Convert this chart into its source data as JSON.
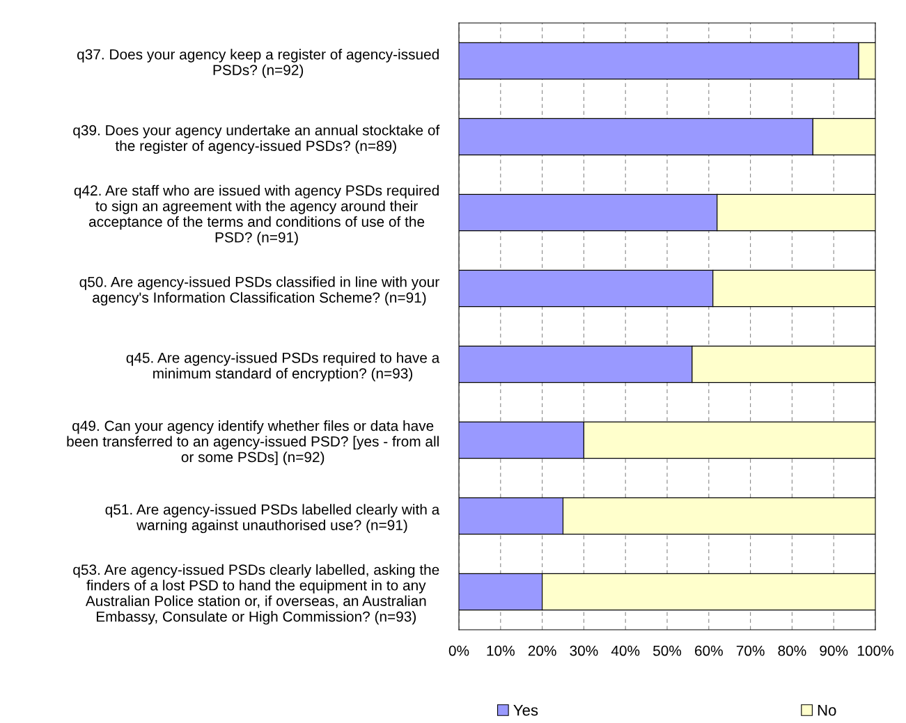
{
  "chart_data": {
    "type": "bar",
    "orientation": "horizontal",
    "stacked": true,
    "categories": [
      "q37. Does your agency keep a register of agency-issued\nPSDs? (n=92)",
      "q39. Does your agency undertake an annual stocktake of\nthe register of agency-issued PSDs? (n=89)",
      "q42. Are staff who are issued with agency PSDs required\nto sign an agreement with the agency around their\nacceptance of the terms and conditions of use of the\nPSD? (n=91)",
      "q50. Are agency-issued PSDs classified in line with your\nagency's Information Classification Scheme? (n=91)",
      "q45. Are agency-issued PSDs required to have a\nminimum standard of encryption? (n=93)",
      "q49. Can your agency identify whether files or data have\nbeen transferred to an agency-issued PSD? [yes - from all\nor some PSDs] (n=92)",
      "q51. Are agency-issued PSDs labelled clearly with a\nwarning against unauthorised use? (n=91)",
      "q53. Are agency-issued PSDs clearly labelled, asking the\nfinders of a lost PSD to hand the equipment in to any\nAustralian Police station or, if overseas, an Australian\nEmbassy, Consulate or High Commission? (n=93)"
    ],
    "series": [
      {
        "name": "Yes",
        "color": "#9999ff",
        "values": [
          96,
          85,
          62,
          61,
          56,
          30,
          25,
          20
        ]
      },
      {
        "name": "No",
        "color": "#ffffcc",
        "values": [
          4,
          15,
          38,
          39,
          44,
          70,
          75,
          80
        ]
      }
    ],
    "xlim": [
      0,
      100
    ],
    "xticks": [
      {
        "value": 0,
        "label": "0%"
      },
      {
        "value": 10,
        "label": "10%"
      },
      {
        "value": 20,
        "label": "20%"
      },
      {
        "value": 30,
        "label": "30%"
      },
      {
        "value": 40,
        "label": "40%"
      },
      {
        "value": 50,
        "label": "50%"
      },
      {
        "value": 60,
        "label": "60%"
      },
      {
        "value": 70,
        "label": "70%"
      },
      {
        "value": 80,
        "label": "80%"
      },
      {
        "value": 90,
        "label": "90%"
      },
      {
        "value": 100,
        "label": "100%"
      }
    ],
    "grid": "x",
    "legend": "bottom"
  }
}
